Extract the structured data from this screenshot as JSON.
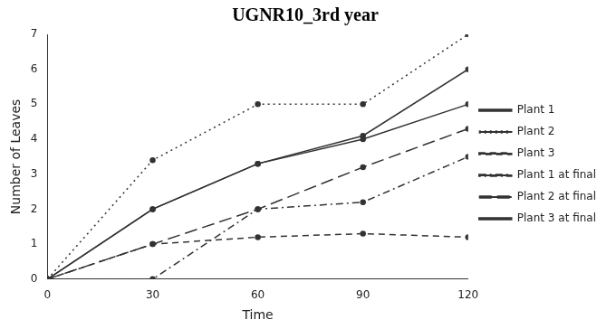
{
  "chart_data": {
    "type": "line",
    "title": "UGNR10_3rd year",
    "x_label": "Time",
    "y_label": "Number of Leaves",
    "xlim": [
      0,
      120
    ],
    "xticks": [
      0,
      30,
      60,
      90,
      120
    ],
    "ylim": [
      0,
      7
    ],
    "yticks": [
      0,
      1,
      2,
      3,
      4,
      5,
      6,
      7
    ],
    "grid": false,
    "legend": "right",
    "x": [
      0,
      30,
      60,
      90,
      120
    ],
    "series": [
      {
        "name": "Plant 1",
        "color": "#333333",
        "line_style": "solid",
        "marker": "circle",
        "values": [
          0,
          2,
          3.3,
          4.1,
          6
        ]
      },
      {
        "name": "Plant 2",
        "color": "#333333",
        "line_style": "dotted",
        "marker": "circle",
        "values": [
          0,
          3.4,
          5,
          5,
          7
        ]
      },
      {
        "name": "Plant 3",
        "color": "#333333",
        "line_style": "dashed",
        "marker": "circle",
        "values": [
          0,
          1,
          1.2,
          1.3,
          1.2
        ]
      },
      {
        "name": "Plant 1 at final",
        "color": "#333333",
        "line_style": "dashdot",
        "marker": "circle",
        "values": [
          0,
          0,
          2,
          2.2,
          3.5
        ]
      },
      {
        "name": "Plant 2 at final",
        "color": "#333333",
        "line_style": "longdash",
        "marker": "circle",
        "values": [
          0,
          1,
          2,
          3.2,
          4.3
        ]
      },
      {
        "name": "Plant 3 at final",
        "color": "#333333",
        "line_style": "solid",
        "marker": "circle",
        "values": [
          0,
          2,
          3.3,
          4,
          5
        ]
      }
    ]
  }
}
